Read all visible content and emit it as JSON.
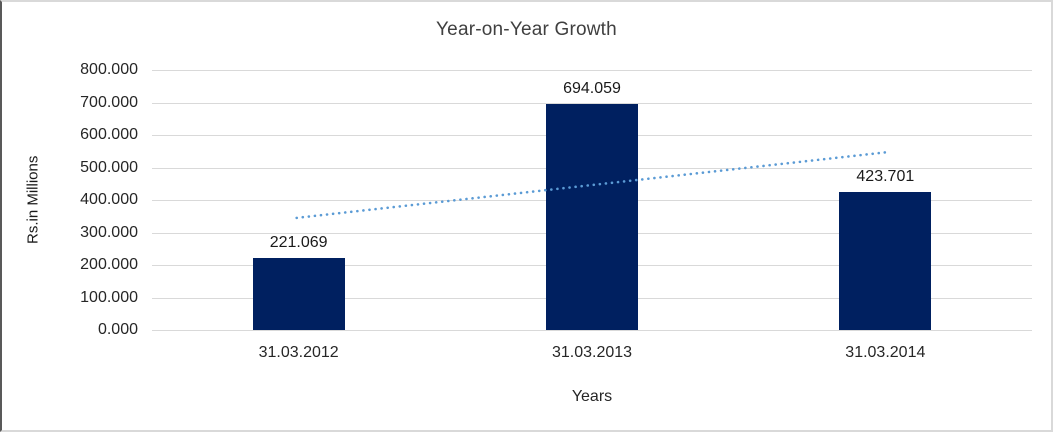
{
  "frame": {
    "background": "#ffffff",
    "border_color": "#d9d9d9",
    "gridline_color": "#d9d9d9"
  },
  "chart_data": {
    "type": "bar",
    "title": "Year-on-Year Growth",
    "xlabel": "Years",
    "ylabel": "Rs.in Millions",
    "categories": [
      "31.03.2012",
      "31.03.2013",
      "31.03.2014"
    ],
    "values": [
      221.069,
      694.059,
      423.701
    ],
    "data_labels": [
      "221.069",
      "694.059",
      "423.701"
    ],
    "ylim": [
      0,
      800
    ],
    "ytick_step": 100,
    "ytick_labels": [
      "0.000",
      "100.000",
      "200.000",
      "300.000",
      "400.000",
      "500.000",
      "600.000",
      "700.000",
      "800.000"
    ],
    "grid": true,
    "legend": "none",
    "bar_color": "#002060",
    "trendline": {
      "style": "dotted",
      "color": "#5B9BD5",
      "start_value": 344.96,
      "end_value": 547.59
    }
  }
}
